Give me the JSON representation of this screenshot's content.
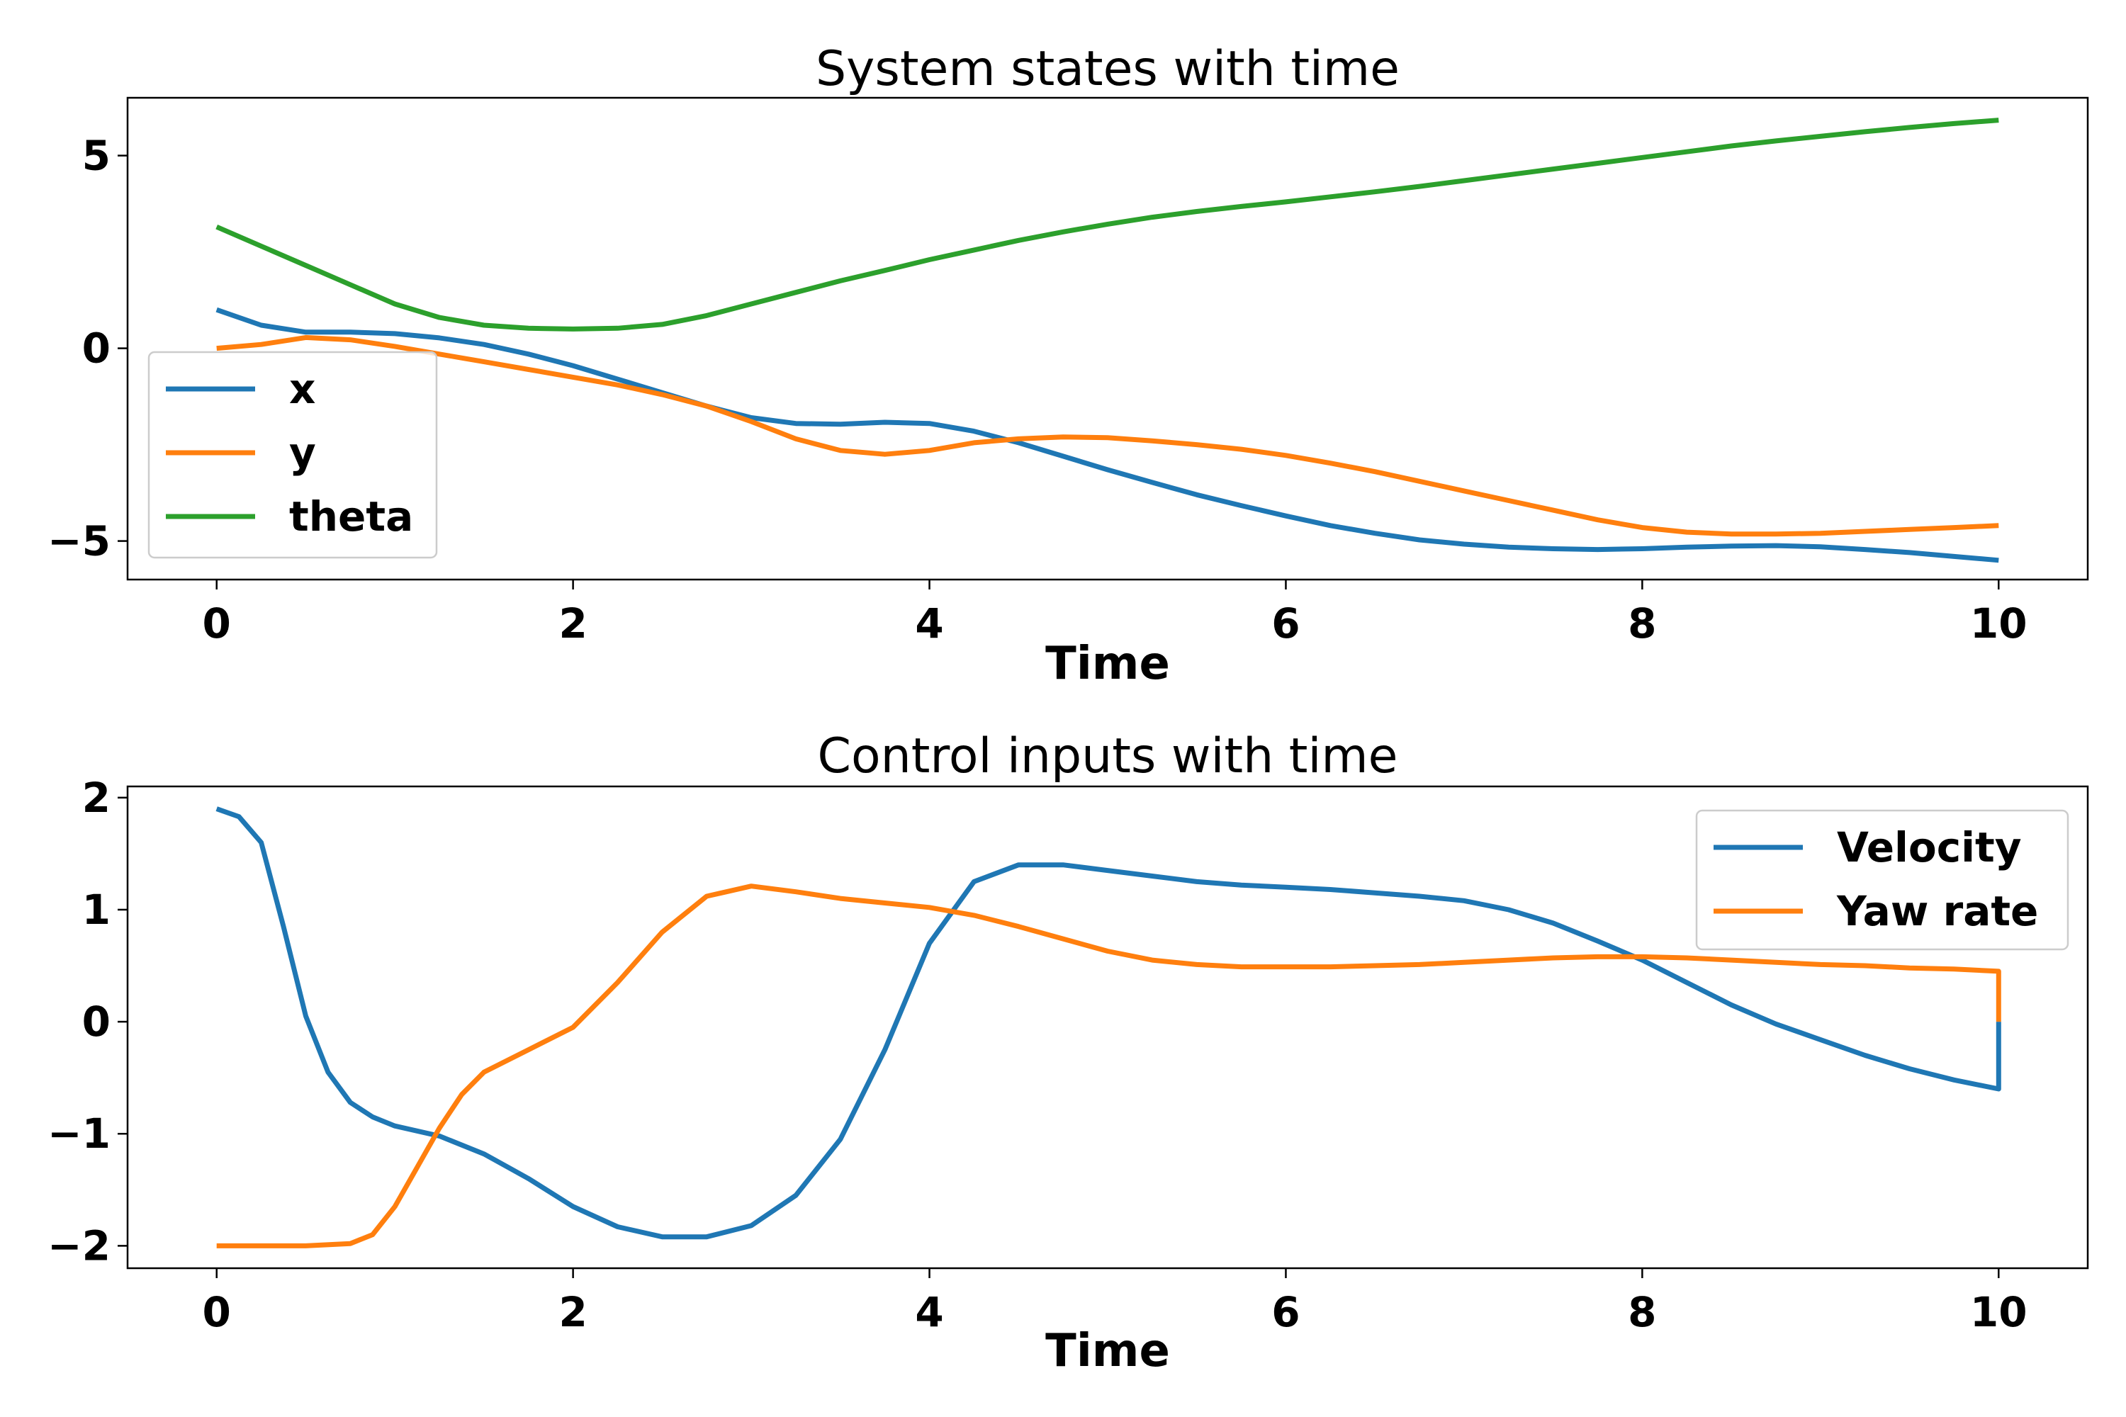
{
  "chart_data": [
    {
      "type": "line",
      "title": "System states with time",
      "xlabel": "Time",
      "ylabel": "",
      "xlim": [
        -0.5,
        10.5
      ],
      "ylim": [
        -6,
        6.5
      ],
      "xticks": [
        0,
        2,
        4,
        6,
        8,
        10
      ],
      "yticks": [
        -5,
        0,
        5
      ],
      "xtick_labels": [
        "0",
        "2",
        "4",
        "6",
        "8",
        "10"
      ],
      "ytick_labels": [
        "−5",
        "0",
        "5"
      ],
      "legend_position": "lower-left",
      "grid": false,
      "series": [
        {
          "name": "x",
          "color": "#1f77b4",
          "x": [
            0,
            0.25,
            0.5,
            0.75,
            1.0,
            1.25,
            1.5,
            1.75,
            2.0,
            2.25,
            2.5,
            2.75,
            3.0,
            3.25,
            3.5,
            3.75,
            4.0,
            4.25,
            4.5,
            4.75,
            5.0,
            5.25,
            5.5,
            5.75,
            6.0,
            6.25,
            6.5,
            6.75,
            7.0,
            7.25,
            7.5,
            7.75,
            8.0,
            8.25,
            8.5,
            8.75,
            9.0,
            9.25,
            9.5,
            9.75,
            10.0
          ],
          "y": [
            1.0,
            0.6,
            0.42,
            0.42,
            0.38,
            0.27,
            0.1,
            -0.15,
            -0.45,
            -0.8,
            -1.15,
            -1.5,
            -1.8,
            -1.95,
            -1.97,
            -1.92,
            -1.95,
            -2.15,
            -2.45,
            -2.8,
            -3.15,
            -3.48,
            -3.8,
            -4.08,
            -4.35,
            -4.6,
            -4.8,
            -4.97,
            -5.08,
            -5.16,
            -5.2,
            -5.22,
            -5.2,
            -5.16,
            -5.13,
            -5.12,
            -5.15,
            -5.22,
            -5.3,
            -5.4,
            -5.5
          ]
        },
        {
          "name": "y",
          "color": "#ff7f0e",
          "x": [
            0,
            0.25,
            0.5,
            0.75,
            1.0,
            1.25,
            1.5,
            1.75,
            2.0,
            2.25,
            2.5,
            2.75,
            3.0,
            3.25,
            3.5,
            3.75,
            4.0,
            4.25,
            4.5,
            4.75,
            5.0,
            5.25,
            5.5,
            5.75,
            6.0,
            6.25,
            6.5,
            6.75,
            7.0,
            7.25,
            7.5,
            7.75,
            8.0,
            8.25,
            8.5,
            8.75,
            9.0,
            9.25,
            9.5,
            9.75,
            10.0
          ],
          "y": [
            0.0,
            0.1,
            0.28,
            0.22,
            0.05,
            -0.15,
            -0.35,
            -0.55,
            -0.75,
            -0.95,
            -1.2,
            -1.5,
            -1.9,
            -2.35,
            -2.65,
            -2.75,
            -2.65,
            -2.45,
            -2.35,
            -2.3,
            -2.32,
            -2.4,
            -2.5,
            -2.62,
            -2.78,
            -2.98,
            -3.2,
            -3.45,
            -3.7,
            -3.95,
            -4.2,
            -4.45,
            -4.65,
            -4.77,
            -4.82,
            -4.82,
            -4.8,
            -4.75,
            -4.7,
            -4.65,
            -4.6
          ]
        },
        {
          "name": "theta",
          "color": "#2ca02c",
          "x": [
            0,
            0.25,
            0.5,
            0.75,
            1.0,
            1.25,
            1.5,
            1.75,
            2.0,
            2.25,
            2.5,
            2.75,
            3.0,
            3.25,
            3.5,
            3.75,
            4.0,
            4.25,
            4.5,
            4.75,
            5.0,
            5.25,
            5.5,
            5.75,
            6.0,
            6.25,
            6.5,
            6.75,
            7.0,
            7.25,
            7.5,
            7.75,
            8.0,
            8.25,
            8.5,
            8.75,
            9.0,
            9.25,
            9.5,
            9.75,
            10.0
          ],
          "y": [
            3.15,
            2.65,
            2.15,
            1.65,
            1.15,
            0.8,
            0.6,
            0.52,
            0.5,
            0.52,
            0.62,
            0.85,
            1.15,
            1.45,
            1.75,
            2.02,
            2.3,
            2.55,
            2.8,
            3.02,
            3.22,
            3.4,
            3.55,
            3.68,
            3.8,
            3.93,
            4.06,
            4.2,
            4.35,
            4.5,
            4.65,
            4.8,
            4.95,
            5.1,
            5.25,
            5.38,
            5.5,
            5.62,
            5.73,
            5.83,
            5.92
          ]
        }
      ]
    },
    {
      "type": "line",
      "title": "Control inputs with time",
      "xlabel": "Time",
      "ylabel": "",
      "xlim": [
        -0.5,
        10.5
      ],
      "ylim": [
        -2.2,
        2.1
      ],
      "xticks": [
        0,
        2,
        4,
        6,
        8,
        10
      ],
      "yticks": [
        -2,
        -1,
        0,
        1,
        2
      ],
      "xtick_labels": [
        "0",
        "2",
        "4",
        "6",
        "8",
        "10"
      ],
      "ytick_labels": [
        "−2",
        "−1",
        "0",
        "1",
        "2"
      ],
      "legend_position": "upper-right",
      "grid": false,
      "series": [
        {
          "name": "Velocity",
          "color": "#1f77b4",
          "x": [
            0,
            0.125,
            0.25,
            0.375,
            0.5,
            0.625,
            0.75,
            0.875,
            1.0,
            1.25,
            1.5,
            1.75,
            2.0,
            2.25,
            2.5,
            2.75,
            3.0,
            3.25,
            3.5,
            3.75,
            4.0,
            4.25,
            4.5,
            4.75,
            5.0,
            5.25,
            5.5,
            5.75,
            6.0,
            6.25,
            6.5,
            6.75,
            7.0,
            7.25,
            7.5,
            7.75,
            8.0,
            8.25,
            8.5,
            8.75,
            9.0,
            9.25,
            9.5,
            9.75,
            10.0,
            10.0
          ],
          "y": [
            1.9,
            1.83,
            1.6,
            0.85,
            0.05,
            -0.45,
            -0.72,
            -0.85,
            -0.93,
            -1.02,
            -1.18,
            -1.4,
            -1.65,
            -1.83,
            -1.92,
            -1.92,
            -1.82,
            -1.55,
            -1.05,
            -0.25,
            0.7,
            1.25,
            1.4,
            1.4,
            1.35,
            1.3,
            1.25,
            1.22,
            1.2,
            1.18,
            1.15,
            1.12,
            1.08,
            1.0,
            0.88,
            0.72,
            0.55,
            0.35,
            0.15,
            -0.02,
            -0.16,
            -0.3,
            -0.42,
            -0.52,
            -0.6,
            0.0
          ]
        },
        {
          "name": "Yaw rate",
          "color": "#ff7f0e",
          "x": [
            0,
            0.25,
            0.5,
            0.75,
            0.875,
            1.0,
            1.125,
            1.25,
            1.375,
            1.5,
            1.75,
            2.0,
            2.25,
            2.5,
            2.75,
            3.0,
            3.25,
            3.5,
            3.75,
            4.0,
            4.25,
            4.5,
            4.75,
            5.0,
            5.25,
            5.5,
            5.75,
            6.0,
            6.25,
            6.5,
            6.75,
            7.0,
            7.25,
            7.5,
            7.75,
            8.0,
            8.25,
            8.5,
            8.75,
            9.0,
            9.25,
            9.5,
            9.75,
            10.0,
            10.0
          ],
          "y": [
            -2.0,
            -2.0,
            -2.0,
            -1.98,
            -1.9,
            -1.65,
            -1.3,
            -0.95,
            -0.65,
            -0.45,
            -0.25,
            -0.05,
            0.35,
            0.8,
            1.12,
            1.21,
            1.16,
            1.1,
            1.06,
            1.02,
            0.95,
            0.85,
            0.74,
            0.63,
            0.55,
            0.51,
            0.49,
            0.49,
            0.49,
            0.5,
            0.51,
            0.53,
            0.55,
            0.57,
            0.58,
            0.58,
            0.57,
            0.55,
            0.53,
            0.51,
            0.5,
            0.48,
            0.47,
            0.45,
            0.0
          ]
        }
      ]
    }
  ]
}
